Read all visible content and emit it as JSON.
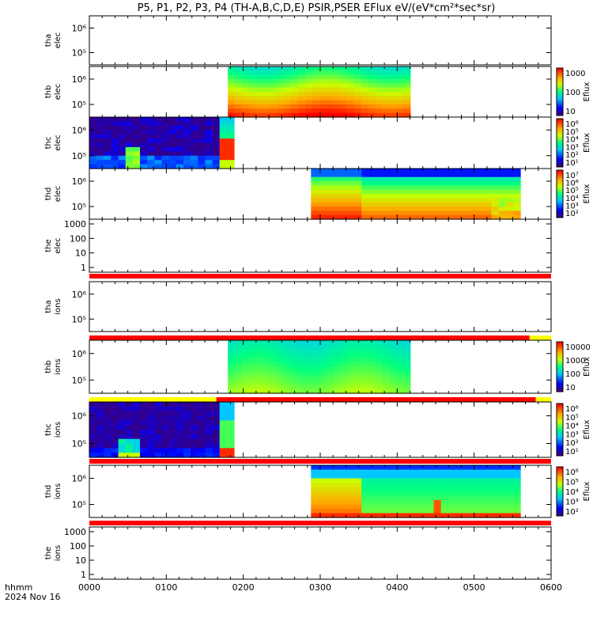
{
  "title": "P5, P1, P2, P3, P4 (TH-A,B,C,D,E) PSIR,PSER EFlux eV/(eV*cm²*sec*sr)",
  "footer": {
    "x_axis_label": "hhmm",
    "date": "2024 Nov 16"
  },
  "colors": {
    "bar_red": "#ff0000",
    "bar_yellow": "#ffff00",
    "panel_bg": "#ffffff",
    "frame": "#000000"
  },
  "chart_data": {
    "type": "heatmap",
    "x_ticks": [
      "0000",
      "0100",
      "0200",
      "0300",
      "0400",
      "0500",
      "0600"
    ],
    "x_range_hours": [
      0,
      6
    ],
    "panels": [
      {
        "id": "tha-elec",
        "label_top": "tha",
        "label_bottom": "elec",
        "scale": "log",
        "y_ticks": [
          "10⁶",
          "10⁵"
        ],
        "data": null,
        "colorbar": null,
        "bar_below": null
      },
      {
        "id": "thb-elec",
        "label_top": "thb",
        "label_bottom": "elec",
        "scale": "log",
        "y_ticks": [
          "10⁶",
          "10⁵"
        ],
        "data": {
          "t_start": 1.8,
          "t_end": 4.17,
          "profile": "thb_elec"
        },
        "colorbar": {
          "label": "Eflux",
          "ticks": [
            "1000",
            "100",
            "10"
          ]
        },
        "bar_below": null
      },
      {
        "id": "thc-elec",
        "label_top": "thc",
        "label_bottom": "elec",
        "scale": "log",
        "y_ticks": [
          "10⁶",
          "10⁵"
        ],
        "data": {
          "t_start": 0.0,
          "t_end": 1.88,
          "profile": "thc_elec"
        },
        "colorbar": {
          "label": "Eflux",
          "ticks": [
            "10⁶",
            "10⁵",
            "10⁴",
            "10³",
            "10²",
            "10¹"
          ]
        },
        "bar_below": null
      },
      {
        "id": "thd-elec",
        "label_top": "thd",
        "label_bottom": "elec",
        "scale": "log",
        "y_ticks": [
          "10⁶",
          "10⁵"
        ],
        "data": {
          "t_start": 2.88,
          "t_end": 5.6,
          "profile": "thd_elec"
        },
        "colorbar": {
          "label": "Eflux",
          "ticks": [
            "10⁷",
            "10⁶",
            "10⁵",
            "10⁴",
            "10³",
            "10²"
          ]
        },
        "bar_below": null
      },
      {
        "id": "the-elec",
        "label_top": "the",
        "label_bottom": "elec",
        "scale": "linear",
        "y_ticks": [
          "1000",
          "100",
          "10",
          "1"
        ],
        "data": null,
        "colorbar": null,
        "bar_below": [
          {
            "color": "red",
            "t_start": 0,
            "t_end": 6
          }
        ]
      },
      {
        "id": "tha-ions",
        "label_top": "tha",
        "label_bottom": "ions",
        "scale": "log",
        "y_ticks": [
          "10⁶",
          "10⁵"
        ],
        "data": null,
        "colorbar": null,
        "bar_below": [
          {
            "color": "red",
            "t_start": 0,
            "t_end": 5.72
          },
          {
            "color": "yellow",
            "t_start": 5.72,
            "t_end": 6
          }
        ]
      },
      {
        "id": "thb-ions",
        "label_top": "thb",
        "label_bottom": "ions",
        "scale": "log",
        "y_ticks": [
          "10⁶",
          "10⁵"
        ],
        "data": {
          "t_start": 1.8,
          "t_end": 4.17,
          "profile": "thb_ions"
        },
        "colorbar": {
          "label": "Eflux",
          "ticks": [
            "10000",
            "1000",
            "100",
            "10"
          ]
        },
        "bar_below": [
          {
            "color": "yellow",
            "t_start": 0,
            "t_end": 1.65
          },
          {
            "color": "red",
            "t_start": 1.65,
            "t_end": 5.8
          },
          {
            "color": "yellow",
            "t_start": 5.8,
            "t_end": 6
          }
        ]
      },
      {
        "id": "thc-ions",
        "label_top": "thc",
        "label_bottom": "ions",
        "scale": "log",
        "y_ticks": [
          "10⁶",
          "10⁵"
        ],
        "data": {
          "t_start": 0.0,
          "t_end": 1.88,
          "profile": "thc_ions"
        },
        "colorbar": {
          "label": "Eflux",
          "ticks": [
            "10⁶",
            "10⁵",
            "10⁴",
            "10³",
            "10²",
            "10¹"
          ]
        },
        "bar_below": [
          {
            "color": "red",
            "t_start": 0,
            "t_end": 6
          }
        ]
      },
      {
        "id": "thd-ions",
        "label_top": "thd",
        "label_bottom": "ions",
        "scale": "log",
        "y_ticks": [
          "10⁶",
          "10⁵"
        ],
        "data": {
          "t_start": 2.88,
          "t_end": 5.6,
          "profile": "thd_ions"
        },
        "colorbar": {
          "label": "Eflux",
          "ticks": [
            "10⁶",
            "10⁵",
            "10⁴",
            "10³",
            "10²"
          ]
        },
        "bar_below": [
          {
            "color": "red",
            "t_start": 0,
            "t_end": 6
          }
        ]
      },
      {
        "id": "the-ions",
        "label_top": "the",
        "label_bottom": "ions",
        "scale": "linear",
        "y_ticks": [
          "1000",
          "100",
          "10",
          "1"
        ],
        "data": null,
        "colorbar": null,
        "bar_below": null
      }
    ]
  }
}
